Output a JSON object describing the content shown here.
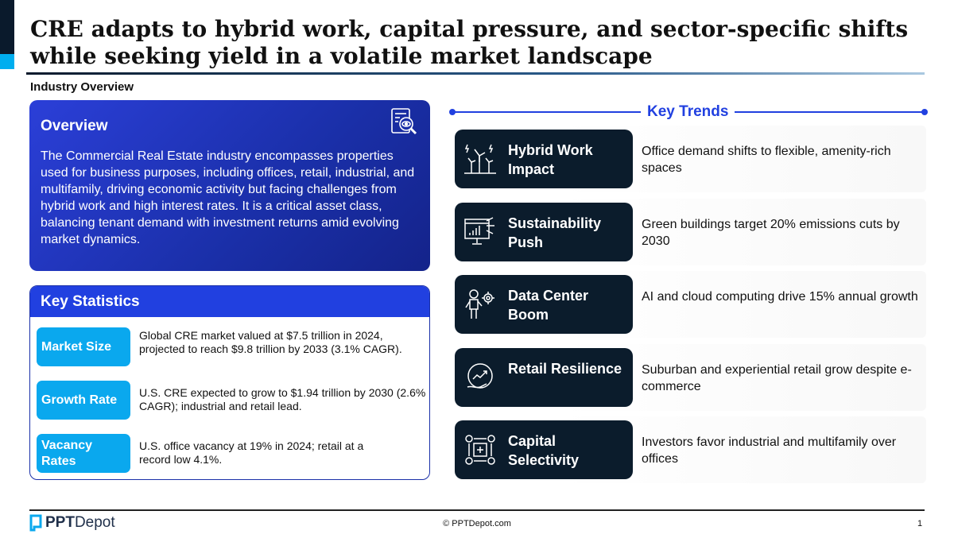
{
  "title": "CRE adapts to hybrid work, capital pressure, and sector-specific shifts while seeking yield in a volatile market landscape",
  "subtitle": "Industry Overview",
  "overview": {
    "heading": "Overview",
    "text": "The Commercial Real Estate industry encompasses properties used for business purposes, including offices, retail, industrial, and multifamily, driving economic activity but facing challenges from hybrid work and high interest rates. It is a critical asset class, balancing tenant demand with investment returns amid evolving market dynamics.",
    "icon": "document-search-icon"
  },
  "key_statistics": {
    "heading": "Key Statistics",
    "items": [
      {
        "label": "Market Size",
        "text": "Global CRE market valued at $7.5 trillion in 2024, projected to reach $9.8 trillion by 2033 (3.1% CAGR)."
      },
      {
        "label": "Growth Rate",
        "text": "U.S. CRE expected to grow to $1.94 trillion by 2030 (2.6% CAGR); industrial and retail lead."
      },
      {
        "label": "Vacancy Rates",
        "text": "U.S. office vacancy at 19% in 2024; retail at a record low 4.1%."
      }
    ]
  },
  "key_trends": {
    "heading": "Key Trends",
    "items": [
      {
        "name": "Hybrid Work Impact",
        "desc": "Office demand shifts to flexible, amenity-rich spaces",
        "icon": "wind-turbine-icon"
      },
      {
        "name": "Sustainability Push",
        "desc": "Green buildings target 20% emissions cuts by 2030",
        "icon": "monitor-chart-icon"
      },
      {
        "name": "Data Center Boom",
        "desc": "AI and cloud computing drive 15% annual growth",
        "icon": "robot-gear-icon"
      },
      {
        "name": "Retail Resilience",
        "desc": "Suburban and experiential retail grow despite e-commerce",
        "icon": "hand-growth-icon"
      },
      {
        "name": "Capital Selectivity",
        "desc": "Investors favor industrial and multifamily over offices",
        "icon": "gears-process-icon"
      }
    ]
  },
  "footer": {
    "logo_bold": "PPT",
    "logo_rest": "Depot",
    "copyright": "© PPTDepot.com",
    "page": "1"
  },
  "colors": {
    "navy": "#0b1c2c",
    "blue": "#2140e0",
    "cyan": "#0aa8ee"
  }
}
